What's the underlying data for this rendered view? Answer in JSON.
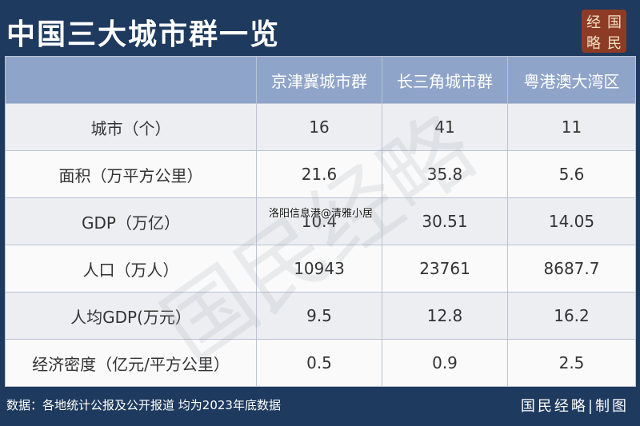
{
  "header": {
    "title": "中国三大城市群一览",
    "logo": [
      "经",
      "国",
      "略",
      "民"
    ]
  },
  "table": {
    "columns": [
      "京津冀城市群",
      "长三角城市群",
      "粤港澳大湾区"
    ],
    "rows": [
      [
        "城市（个）",
        16,
        41,
        11
      ],
      [
        "面积（万平方公里）",
        21.6,
        35.8,
        5.6
      ],
      [
        "GDP（万亿）",
        10.4,
        30.51,
        14.05
      ],
      [
        "人口（万人）",
        10943,
        23761,
        8687.7
      ],
      [
        "人均GDP(万元）",
        9.5,
        12.8,
        16.2
      ],
      [
        "经济密度（亿元/平方公里）",
        0.5,
        0.9,
        2.5
      ]
    ]
  },
  "watermark": {
    "text": "国民经略",
    "overlay": "洛阳信息港@清雅小居"
  },
  "footer": {
    "source": "数据：各地统计公报及公开报道 均为2023年底数据",
    "credit": "国民经略|制图"
  }
}
